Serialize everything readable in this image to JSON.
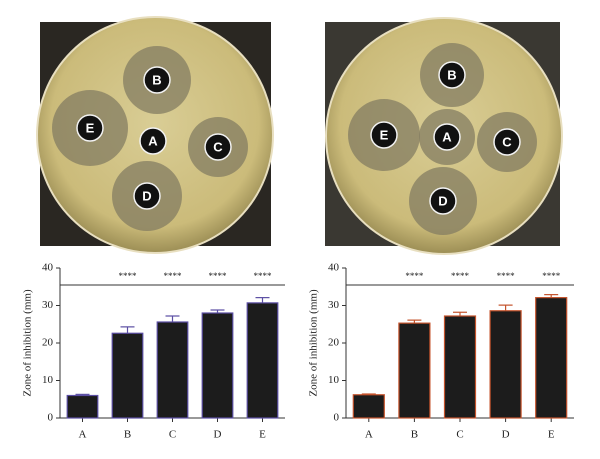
{
  "photos": [
    {
      "labels": [
        "B",
        "E",
        "A",
        "C",
        "D"
      ]
    },
    {
      "labels": [
        "B",
        "E",
        "A",
        "C",
        "D"
      ]
    }
  ],
  "chart_data": [
    {
      "type": "bar",
      "y_label": "Zone of inhibition (mm)",
      "categories": [
        "A",
        "B",
        "C",
        "D",
        "E"
      ],
      "values": [
        6,
        22.6,
        25.6,
        28,
        30.7
      ],
      "errors": [
        0.3,
        1.7,
        1.6,
        0.8,
        1.4
      ],
      "significance": [
        null,
        "****",
        "****",
        "****",
        "****"
      ],
      "color": "#1c1c1c",
      "edge_color": "#5b4ea3",
      "ylim": [
        0,
        40
      ],
      "yticks": [
        0,
        10,
        20,
        30,
        40
      ]
    },
    {
      "type": "bar",
      "y_label": "Zone of inhibition (mm)",
      "categories": [
        "A",
        "B",
        "C",
        "D",
        "E"
      ],
      "values": [
        6.2,
        25.3,
        27.2,
        28.6,
        32.1
      ],
      "errors": [
        0.2,
        0.8,
        1.0,
        1.5,
        0.8
      ],
      "significance": [
        null,
        "****",
        "****",
        "****",
        "****"
      ],
      "color": "#1c1c1c",
      "edge_color": "#c4532c",
      "ylim": [
        0,
        40
      ],
      "yticks": [
        0,
        10,
        20,
        30,
        40
      ]
    }
  ]
}
